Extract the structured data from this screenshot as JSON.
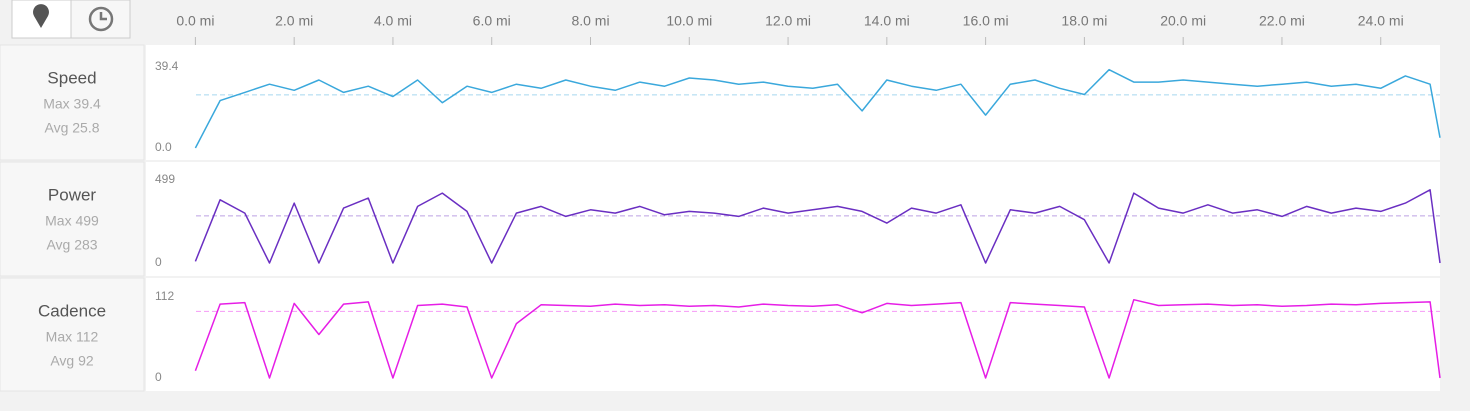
{
  "chart_data": [
    {
      "type": "line",
      "title": "Speed",
      "color": "#3aa8dc",
      "max": {
        "value": 39.4,
        "label": "Max 39.4"
      },
      "avg": {
        "value": 25.8,
        "label": "Avg 25.8"
      },
      "xlim": [
        -1,
        25.2
      ],
      "ylim": [
        -5.8,
        50
      ],
      "xticks": [
        {
          "value": 0,
          "label": "0.0 mi"
        },
        {
          "value": 2,
          "label": "2.0 mi"
        },
        {
          "value": 4,
          "label": "4.0 mi"
        },
        {
          "value": 6,
          "label": "6.0 mi"
        },
        {
          "value": 8,
          "label": "8.0 mi"
        },
        {
          "value": 10,
          "label": "10.0 mi"
        },
        {
          "value": 12,
          "label": "12.0 mi"
        },
        {
          "value": 14,
          "label": "14.0 mi"
        },
        {
          "value": 16,
          "label": "16.0 mi"
        },
        {
          "value": 18,
          "label": "18.0 mi"
        },
        {
          "value": 20,
          "label": "20.0 mi"
        },
        {
          "value": 22,
          "label": "22.0 mi"
        },
        {
          "value": 24,
          "label": "24.0 mi"
        }
      ],
      "yticks": [
        {
          "value": 0,
          "label": "0.0"
        },
        39.4
      ],
      "x": [
        0,
        0.5,
        1,
        1.5,
        2,
        2.5,
        3,
        3.5,
        4,
        4.5,
        5,
        5.5,
        6,
        6.5,
        7,
        7.5,
        8,
        8.5,
        9,
        9.5,
        10,
        10.5,
        11,
        11.5,
        12,
        12.5,
        13,
        13.5,
        14,
        14.5,
        15,
        15.5,
        16,
        16.5,
        17,
        17.5,
        18,
        18.5,
        19,
        19.5,
        20,
        20.5,
        21,
        21.5,
        22,
        22.5,
        23,
        23.5,
        24,
        24.5,
        25,
        25.2
      ],
      "values": [
        0,
        23,
        27,
        31,
        28,
        33,
        27,
        30,
        25,
        33,
        22,
        30,
        27,
        31,
        29,
        33,
        30,
        28,
        32,
        30,
        34,
        33,
        31,
        32,
        30,
        29,
        31,
        18,
        33,
        30,
        28,
        31,
        16,
        31,
        33,
        29,
        26,
        38,
        32,
        32,
        33,
        32,
        31,
        30,
        31,
        32,
        30,
        31,
        29,
        35,
        31,
        5
      ]
    },
    {
      "type": "line",
      "title": "Power",
      "color": "#6a2fc2",
      "max": {
        "value": 499,
        "label": "Max 499"
      },
      "avg": {
        "value": 283,
        "label": "Avg 283"
      },
      "xlim": [
        -1,
        25.2
      ],
      "ylim": [
        -78,
        607
      ],
      "yticks": [
        0,
        499
      ],
      "x": [
        0,
        0.5,
        1,
        1.5,
        2,
        2.5,
        3,
        3.5,
        4,
        4.5,
        5,
        5.5,
        6,
        6.5,
        7,
        7.5,
        8,
        8.5,
        9,
        9.5,
        10,
        10.5,
        11,
        11.5,
        12,
        12.5,
        13,
        13.5,
        14,
        14.5,
        15,
        15.5,
        16,
        16.5,
        17,
        17.5,
        18,
        18.5,
        19,
        19.5,
        20,
        20.5,
        21,
        21.5,
        22,
        22.5,
        23,
        23.5,
        24,
        24.5,
        25,
        25.2
      ],
      "values": [
        10,
        380,
        300,
        0,
        360,
        0,
        330,
        390,
        0,
        340,
        420,
        310,
        0,
        300,
        340,
        280,
        320,
        300,
        340,
        290,
        310,
        300,
        280,
        330,
        300,
        320,
        340,
        310,
        240,
        330,
        300,
        350,
        0,
        320,
        300,
        340,
        260,
        0,
        420,
        330,
        300,
        350,
        300,
        320,
        280,
        340,
        300,
        330,
        310,
        360,
        440,
        0
      ]
    },
    {
      "type": "line",
      "title": "Cadence",
      "color": "#e61ee6",
      "max": {
        "value": 112,
        "label": "Max 112"
      },
      "avg": {
        "value": 92,
        "label": "Avg 92"
      },
      "xlim": [
        -1,
        25.2
      ],
      "ylim": [
        -18,
        138
      ],
      "yticks": [
        0,
        112
      ],
      "x": [
        0,
        0.5,
        1,
        1.5,
        2,
        2.5,
        3,
        3.5,
        4,
        4.5,
        5,
        5.5,
        6,
        6.5,
        7,
        7.5,
        8,
        8.5,
        9,
        9.5,
        10,
        10.5,
        11,
        11.5,
        12,
        12.5,
        13,
        13.5,
        14,
        14.5,
        15,
        15.5,
        16,
        16.5,
        17,
        17.5,
        18,
        18.5,
        19,
        19.5,
        20,
        20.5,
        21,
        21.5,
        22,
        22.5,
        23,
        23.5,
        24,
        24.5,
        25,
        25.2
      ],
      "values": [
        10,
        102,
        104,
        0,
        103,
        60,
        102,
        105,
        0,
        100,
        102,
        98,
        0,
        75,
        101,
        100,
        99,
        102,
        100,
        101,
        99,
        100,
        98,
        102,
        100,
        99,
        101,
        90,
        103,
        100,
        102,
        104,
        0,
        104,
        102,
        100,
        98,
        0,
        108,
        100,
        101,
        102,
        100,
        101,
        99,
        100,
        102,
        101,
        103,
        104,
        105,
        0
      ]
    }
  ]
}
